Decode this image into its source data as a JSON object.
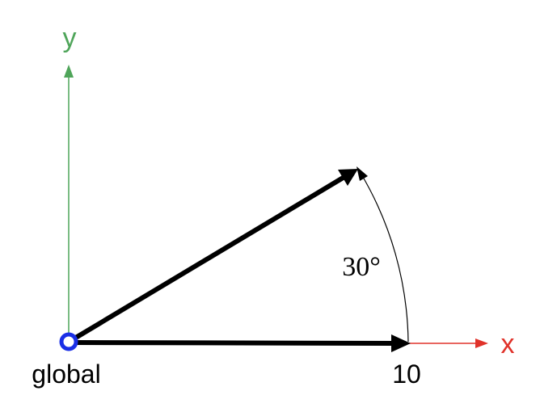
{
  "diagram": {
    "y_axis_label": "y",
    "x_axis_label": "x",
    "origin_label": "global",
    "tick_label": "10",
    "angle_label": "30°",
    "colors": {
      "x_axis": "#e0322a",
      "y_axis": "#4fa55a",
      "vector": "#000000",
      "origin_ring": "#1a2fe6",
      "arc": "#000000",
      "text": "#000000"
    }
  }
}
